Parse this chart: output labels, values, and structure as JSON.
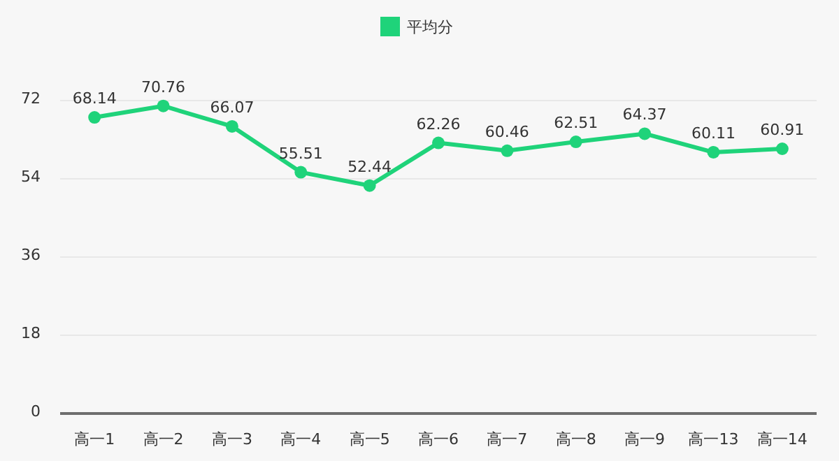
{
  "chart_data": {
    "type": "line",
    "categories": [
      "高一1",
      "高一2",
      "高一3",
      "高一4",
      "高一5",
      "高一6",
      "高一7",
      "高一8",
      "高一9",
      "高一13",
      "高一14"
    ],
    "series": [
      {
        "name": "平均分",
        "color": "#1fd37a",
        "values": [
          68.14,
          70.76,
          66.07,
          55.51,
          52.44,
          62.26,
          60.46,
          62.51,
          64.37,
          60.11,
          60.91
        ]
      }
    ],
    "ylim": [
      0,
      72
    ],
    "yticks": [
      0,
      18,
      36,
      54,
      72
    ],
    "grid": "y",
    "legend": "top",
    "marker": "circle",
    "line_style": "solid",
    "data_labels": true
  }
}
